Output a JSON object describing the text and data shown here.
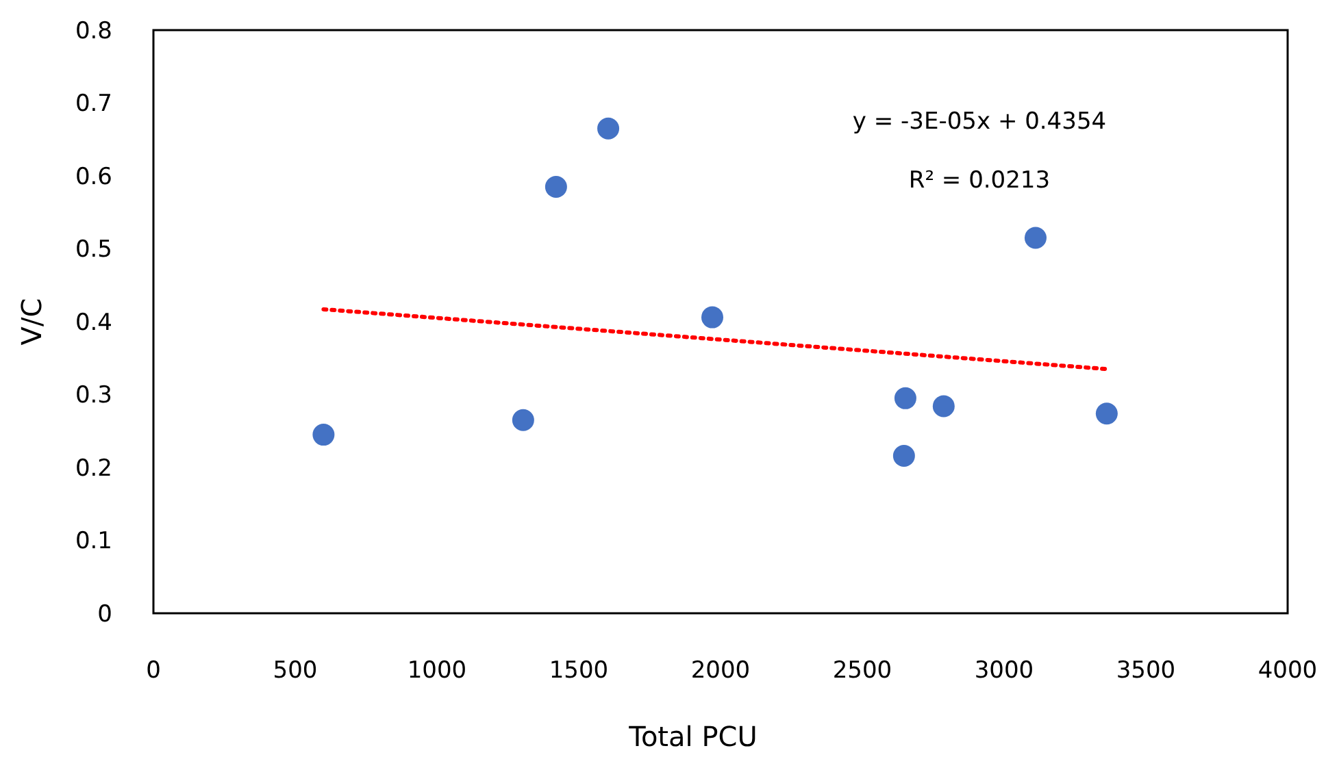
{
  "chart_data": {
    "type": "scatter",
    "xlabel": "Total PCU",
    "ylabel": "V/C",
    "xlim": [
      0,
      4000
    ],
    "xticks": [
      0,
      500,
      1000,
      1500,
      2000,
      2500,
      3000,
      3500,
      4000
    ],
    "ylim": [
      0,
      0.8
    ],
    "yticks": [
      0,
      0.1,
      0.2,
      0.3,
      0.4,
      0.5,
      0.6,
      0.7,
      0.8
    ],
    "grid": false,
    "marker": "circle",
    "series": [
      {
        "color": "#4472c4",
        "x": [
          600,
          1304,
          1420,
          1604,
          1971,
          2647,
          2652,
          2787,
          3111,
          3362
        ],
        "values": [
          0.245,
          0.265,
          0.585,
          0.665,
          0.406,
          0.216,
          0.295,
          0.284,
          0.515,
          0.274
        ]
      },
      {
        "type": "line",
        "color": "#ff0000",
        "line_style": "dotted",
        "marker": "none",
        "x": [
          600,
          3362
        ],
        "values": [
          0.417,
          0.335
        ]
      }
    ],
    "annotations": [
      "y = -3E-05x + 0.4354",
      "R² = 0.0213"
    ]
  }
}
